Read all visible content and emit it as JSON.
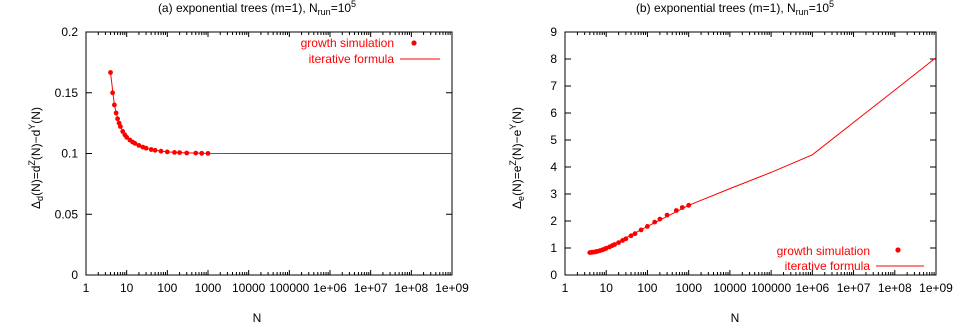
{
  "chart_data": [
    {
      "type": "scatter",
      "title_main": "(a) exponential trees (m=1), N",
      "title_sub": "run",
      "title_eq": "=10",
      "title_sup": "5",
      "xlabel": "N",
      "ylabel_parts": {
        "a": "Δ",
        "b": "d",
        "c": "(N)=d",
        "d": "Z",
        "e": "(N)−d",
        "f": "Y",
        "g": "(N)"
      },
      "x_scale": "log",
      "xlim": [
        1,
        1000000000
      ],
      "ylim": [
        0,
        0.2
      ],
      "xticks": [
        "1",
        "10",
        "100",
        "1000",
        "10000",
        "100000",
        "1e+06",
        "1e+07",
        "1e+08",
        "1e+09"
      ],
      "yticks": [
        "0",
        "0.05",
        "0.1",
        "0.15",
        "0.2"
      ],
      "legend_position": "top-right",
      "series": [
        {
          "name": "growth simulation",
          "style": "points",
          "color": "#ff0000",
          "x": [
            4,
            4.5,
            5,
            5.5,
            6,
            6.5,
            7,
            8,
            9,
            10,
            12,
            14,
            16,
            20,
            25,
            30,
            40,
            50,
            70,
            100,
            150,
            200,
            300,
            500,
            700,
            1000
          ],
          "y": [
            0.1667,
            0.15,
            0.14,
            0.1333,
            0.1286,
            0.125,
            0.1222,
            0.1182,
            0.1154,
            0.1133,
            0.1111,
            0.1095,
            0.1083,
            0.1067,
            0.1053,
            0.1044,
            0.1033,
            0.1026,
            0.1019,
            0.1013,
            0.1009,
            0.1007,
            0.1004,
            0.1003,
            0.1002,
            0.1001
          ]
        },
        {
          "name": "iterative formula",
          "style": "line",
          "color": "#ff0000",
          "x": [
            4,
            5,
            6,
            8,
            10,
            15,
            20,
            30,
            50,
            100,
            200,
            500,
            1000,
            10000,
            1000000,
            1000000000
          ],
          "y": [
            0.1667,
            0.14,
            0.1286,
            0.1182,
            0.1133,
            0.1088,
            0.1067,
            0.1044,
            0.1026,
            0.1013,
            0.1007,
            0.1003,
            0.1001,
            0.1,
            0.1,
            0.1
          ]
        }
      ]
    },
    {
      "type": "scatter",
      "title_main": "(b) exponential trees (m=1), N",
      "title_sub": "run",
      "title_eq": "=10",
      "title_sup": "5",
      "xlabel": "N",
      "ylabel_parts": {
        "a": "Δ",
        "b": "e",
        "c": "(N)=e",
        "d": "Z",
        "e": "(N)−e",
        "f": "Y",
        "g": "(N)"
      },
      "x_scale": "log",
      "xlim": [
        1,
        1000000000
      ],
      "ylim": [
        0,
        9
      ],
      "xticks": [
        "1",
        "10",
        "100",
        "1000",
        "10000",
        "100000",
        "1e+06",
        "1e+07",
        "1e+08",
        "1e+09"
      ],
      "yticks": [
        "0",
        "1",
        "2",
        "3",
        "4",
        "5",
        "6",
        "7",
        "8",
        "9"
      ],
      "legend_position": "bottom-right",
      "series": [
        {
          "name": "growth simulation",
          "style": "points",
          "color": "#ff0000",
          "x": [
            4,
            4.5,
            5,
            5.5,
            6,
            7,
            8,
            9,
            10,
            12,
            14,
            16,
            20,
            25,
            30,
            40,
            50,
            70,
            100,
            150,
            200,
            300,
            500,
            700,
            1000
          ],
          "y": [
            0.83,
            0.84,
            0.85,
            0.86,
            0.875,
            0.9,
            0.93,
            0.96,
            0.99,
            1.04,
            1.09,
            1.13,
            1.2,
            1.28,
            1.34,
            1.45,
            1.53,
            1.67,
            1.8,
            1.96,
            2.07,
            2.22,
            2.39,
            2.5,
            2.58
          ]
        },
        {
          "name": "iterative formula",
          "style": "line",
          "color": "#ff0000",
          "x": [
            4,
            10,
            100,
            1000,
            10000,
            100000,
            1000000,
            10000000,
            100000000,
            1000000000
          ],
          "y": [
            0.83,
            0.99,
            1.8,
            2.58,
            3.2,
            3.8,
            4.45,
            5.65,
            6.85,
            8.05
          ]
        }
      ]
    }
  ]
}
